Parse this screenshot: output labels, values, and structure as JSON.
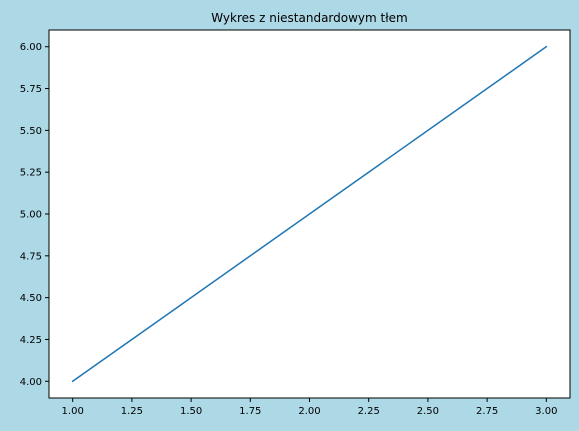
{
  "chart_data": {
    "type": "line",
    "title": "Wykres z niestandardowym tłem",
    "xlabel": "",
    "ylabel": "",
    "x": [
      1,
      2,
      3
    ],
    "series": [
      {
        "values": [
          4,
          5,
          6
        ],
        "color": "#1f77b4"
      }
    ],
    "xlim": [
      0.9,
      3.1
    ],
    "ylim": [
      3.9,
      6.1
    ],
    "xticks": [
      1.0,
      1.25,
      1.5,
      1.75,
      2.0,
      2.25,
      2.5,
      2.75,
      3.0
    ],
    "yticks": [
      4.0,
      4.25,
      4.5,
      4.75,
      5.0,
      5.25,
      5.5,
      5.75,
      6.0
    ],
    "xtick_labels": [
      "1.00",
      "1.25",
      "1.50",
      "1.75",
      "2.00",
      "2.25",
      "2.50",
      "2.75",
      "3.00"
    ],
    "ytick_labels": [
      "4.00",
      "4.25",
      "4.50",
      "4.75",
      "5.00",
      "5.25",
      "5.50",
      "5.75",
      "6.00"
    ],
    "grid": false,
    "figure_background": "#add8e6",
    "axes_background": "#ffffff"
  }
}
